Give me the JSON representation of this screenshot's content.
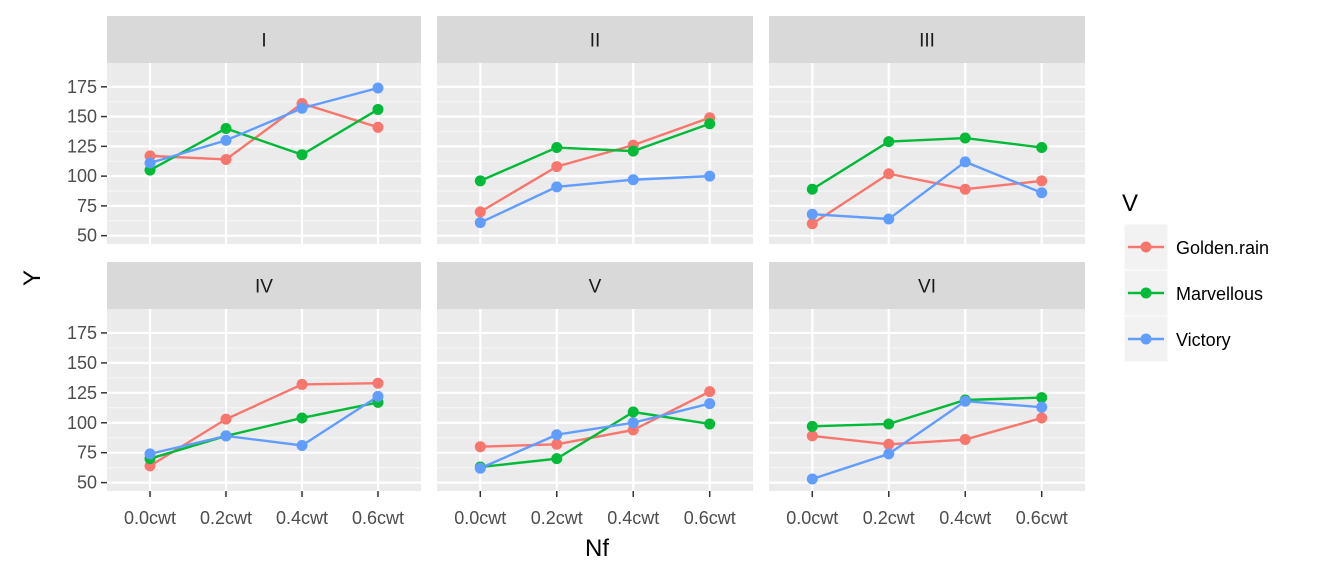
{
  "chart_data": {
    "type": "line",
    "facet_var": "Block",
    "xlabel": "Nf",
    "ylabel": "Y",
    "x_categories": [
      "0.0cwt",
      "0.2cwt",
      "0.4cwt",
      "0.6cwt"
    ],
    "y_ticks": [
      50,
      75,
      100,
      125,
      150,
      175
    ],
    "ylim": [
      43,
      195
    ],
    "legend": {
      "title": "V",
      "position": "right"
    },
    "series_names": [
      "Golden.rain",
      "Marvellous",
      "Victory"
    ],
    "series_colors": {
      "Golden.rain": "#F8766D",
      "Marvellous": "#00BA38",
      "Victory": "#619CFF"
    },
    "panels": [
      {
        "label": "I",
        "series": [
          {
            "name": "Golden.rain",
            "values": [
              117,
              114,
              161,
              141
            ]
          },
          {
            "name": "Marvellous",
            "values": [
              105,
              140,
              118,
              156
            ]
          },
          {
            "name": "Victory",
            "values": [
              111,
              130,
              157,
              174
            ]
          }
        ]
      },
      {
        "label": "II",
        "series": [
          {
            "name": "Golden.rain",
            "values": [
              70,
              108,
              126,
              149
            ]
          },
          {
            "name": "Marvellous",
            "values": [
              96,
              124,
              121,
              144
            ]
          },
          {
            "name": "Victory",
            "values": [
              61,
              91,
              97,
              100
            ]
          }
        ]
      },
      {
        "label": "III",
        "series": [
          {
            "name": "Golden.rain",
            "values": [
              60,
              102,
              89,
              96
            ]
          },
          {
            "name": "Marvellous",
            "values": [
              89,
              129,
              132,
              124
            ]
          },
          {
            "name": "Victory",
            "values": [
              68,
              64,
              112,
              86
            ]
          }
        ]
      },
      {
        "label": "IV",
        "series": [
          {
            "name": "Golden.rain",
            "values": [
              64,
              103,
              132,
              133
            ]
          },
          {
            "name": "Marvellous",
            "values": [
              70,
              89,
              104,
              117
            ]
          },
          {
            "name": "Victory",
            "values": [
              74,
              89,
              81,
              122
            ]
          }
        ]
      },
      {
        "label": "V",
        "series": [
          {
            "name": "Golden.rain",
            "values": [
              80,
              82,
              94,
              126
            ]
          },
          {
            "name": "Marvellous",
            "values": [
              63,
              70,
              109,
              99
            ]
          },
          {
            "name": "Victory",
            "values": [
              62,
              90,
              100,
              116
            ]
          }
        ]
      },
      {
        "label": "VI",
        "series": [
          {
            "name": "Golden.rain",
            "values": [
              89,
              82,
              86,
              104
            ]
          },
          {
            "name": "Marvellous",
            "values": [
              97,
              99,
              119,
              121
            ]
          },
          {
            "name": "Victory",
            "values": [
              53,
              74,
              118,
              113
            ]
          }
        ]
      }
    ]
  }
}
